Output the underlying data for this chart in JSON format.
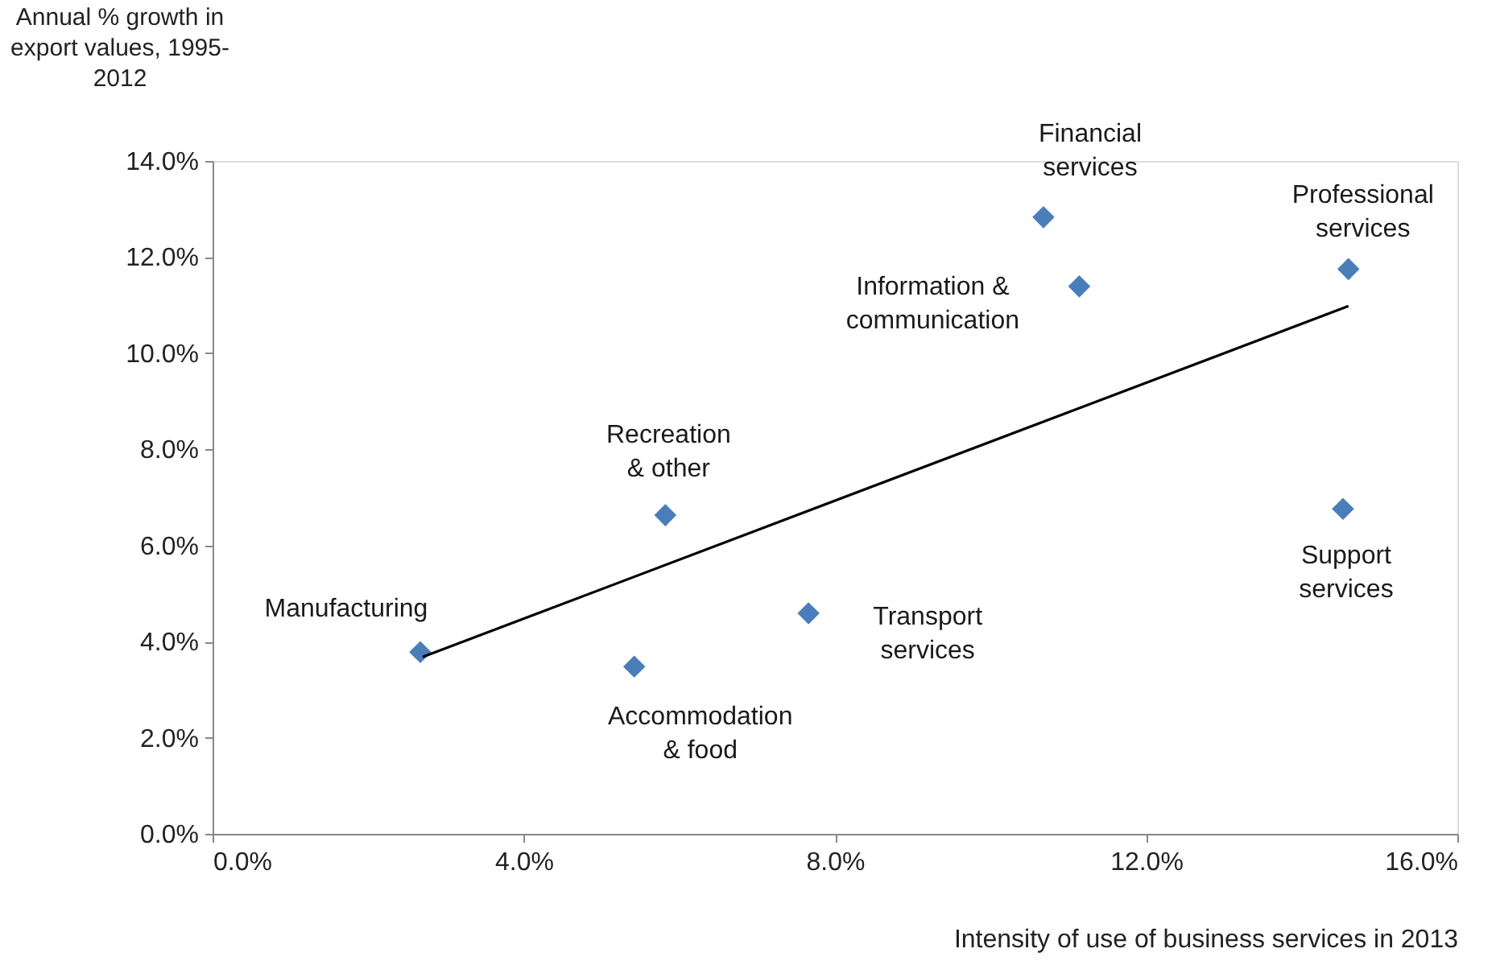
{
  "chart_data": {
    "type": "scatter",
    "xlabel": "Intensity of use of business services in 2013",
    "ylabel": "Annual % growth in\nexport values, 1995-\n2012",
    "xlim": [
      0,
      16
    ],
    "ylim": [
      0,
      14
    ],
    "xticks": [
      {
        "value": 0,
        "label": "0.0%"
      },
      {
        "value": 4,
        "label": "4.0%"
      },
      {
        "value": 8,
        "label": "8.0%"
      },
      {
        "value": 12,
        "label": "12.0%"
      },
      {
        "value": 16,
        "label": "16.0%"
      }
    ],
    "yticks": [
      {
        "value": 0,
        "label": "0.0%"
      },
      {
        "value": 2,
        "label": "2.0%"
      },
      {
        "value": 4,
        "label": "4.0%"
      },
      {
        "value": 6,
        "label": "6.0%"
      },
      {
        "value": 8,
        "label": "8.0%"
      },
      {
        "value": 10,
        "label": "10.0%"
      },
      {
        "value": 12,
        "label": "12.0%"
      },
      {
        "value": 14,
        "label": "14.0%"
      }
    ],
    "grid": false,
    "marker": "diamond",
    "series": [
      {
        "color": "#4a7ebb",
        "x": [
          2.67,
          5.42,
          5.82,
          7.66,
          10.68,
          11.14,
          14.6,
          14.53
        ],
        "values": [
          3.78,
          3.48,
          6.63,
          4.59,
          12.83,
          11.39,
          11.75,
          6.76
        ]
      },
      {
        "type": "line",
        "marker": "none",
        "line_style": "solid",
        "color": "#000000",
        "x": [
          2.7,
          14.6
        ],
        "values": [
          3.68,
          10.98
        ]
      }
    ],
    "annotations": [
      {
        "text": "Manufacturing",
        "x": 2.67,
        "y": 3.78
      },
      {
        "text": "Accommodation\n& food",
        "x": 5.42,
        "y": 3.48
      },
      {
        "text": "Recreation\n& other",
        "x": 5.82,
        "y": 6.63
      },
      {
        "text": "Transport\nservices",
        "x": 7.66,
        "y": 4.59
      },
      {
        "text": "Financial\nservices",
        "x": 10.68,
        "y": 12.83
      },
      {
        "text": "Information &\ncommunication",
        "x": 11.14,
        "y": 11.39
      },
      {
        "text": "Professional\nservices",
        "x": 14.6,
        "y": 11.75
      },
      {
        "text": "Support\nservices",
        "x": 14.53,
        "y": 6.76
      }
    ]
  }
}
